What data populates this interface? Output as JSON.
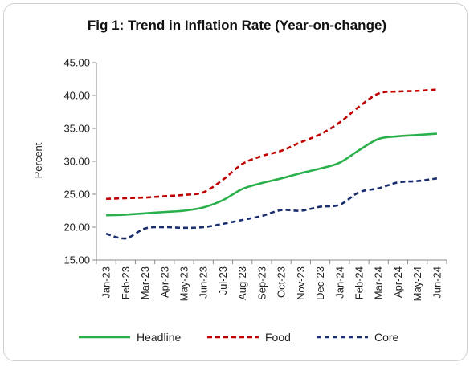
{
  "chart_data": {
    "type": "line",
    "title": "Fig 1: Trend in Inflation Rate (Year-on-change)",
    "xlabel": "",
    "ylabel": "Percent",
    "ylim": [
      15,
      45
    ],
    "yticks": [
      "15.00",
      "20.00",
      "25.00",
      "30.00",
      "35.00",
      "40.00",
      "45.00"
    ],
    "categories": [
      "Jan-23",
      "Feb-23",
      "Mar-23",
      "Apr-23",
      "May-23",
      "Jun-23",
      "Jul-23",
      "Aug-23",
      "Sep-23",
      "Oct-23",
      "Nov-23",
      "Dec-23",
      "Jan-24",
      "Feb-24",
      "Mar-24",
      "Apr-24",
      "May-24",
      "Jun-24"
    ],
    "grid": false,
    "legend": "bottom",
    "series": [
      {
        "name": "Headline",
        "color": "#2ab04a",
        "style": "solid",
        "values": [
          21.8,
          21.9,
          22.1,
          22.3,
          22.5,
          23.0,
          24.1,
          25.8,
          26.7,
          27.4,
          28.2,
          28.9,
          29.8,
          31.7,
          33.4,
          33.8,
          34.0,
          34.2
        ]
      },
      {
        "name": "Food",
        "color": "#c00000",
        "style": "dashed",
        "values": [
          24.3,
          24.4,
          24.5,
          24.7,
          24.9,
          25.3,
          27.2,
          29.6,
          30.8,
          31.6,
          32.9,
          34.1,
          35.9,
          38.3,
          40.3,
          40.6,
          40.7,
          40.9
        ]
      },
      {
        "name": "Core",
        "color": "#1a2e6e",
        "style": "dashed",
        "values": [
          19.0,
          18.3,
          19.8,
          20.0,
          19.9,
          20.0,
          20.5,
          21.1,
          21.7,
          22.6,
          22.5,
          23.1,
          23.4,
          25.3,
          25.9,
          26.8,
          27.0,
          27.4
        ]
      }
    ]
  }
}
